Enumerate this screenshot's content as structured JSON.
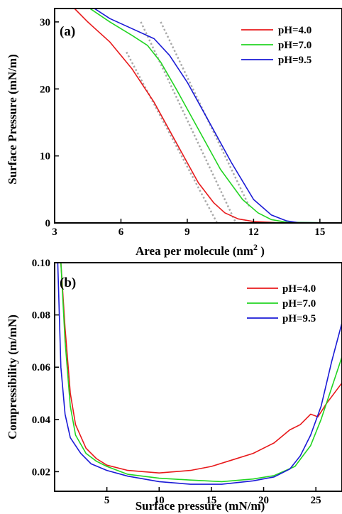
{
  "colors": {
    "pH4": "#e8191b",
    "pH7": "#22d422",
    "pH9": "#1a1ad6",
    "guide": "#a9a9a9"
  },
  "chart_data": [
    {
      "type": "line",
      "panel_label": "(a)",
      "xlabel": "Area per molecule (nm",
      "xlabel_sup": "2",
      "xlabel_close": " )",
      "ylabel": "Surface Pressure (mN/m)",
      "xlim": [
        3,
        16
      ],
      "ylim": [
        0,
        32
      ],
      "xticks": [
        3,
        6,
        9,
        12,
        15
      ],
      "yticks": [
        0,
        10,
        20,
        30
      ],
      "legend_position": "top-right",
      "series": [
        {
          "name": "pH=4.0",
          "color_key": "pH4",
          "points": [
            [
              3.9,
              32
            ],
            [
              4.5,
              30
            ],
            [
              5.5,
              27
            ],
            [
              6.5,
              23
            ],
            [
              7.5,
              18
            ],
            [
              8.5,
              12
            ],
            [
              9.5,
              6
            ],
            [
              10.2,
              3
            ],
            [
              10.7,
              1.5
            ],
            [
              11.3,
              0.6
            ],
            [
              12.0,
              0.2
            ],
            [
              13.0,
              0.05
            ],
            [
              16.0,
              0
            ]
          ]
        },
        {
          "name": "pH=7.0",
          "color_key": "pH7",
          "points": [
            [
              4.6,
              32
            ],
            [
              5.5,
              30
            ],
            [
              6.5,
              28
            ],
            [
              7.2,
              26.5
            ],
            [
              7.8,
              24
            ],
            [
              8.5,
              20
            ],
            [
              9.5,
              14
            ],
            [
              10.5,
              8
            ],
            [
              11.5,
              3.5
            ],
            [
              12.2,
              1.5
            ],
            [
              12.8,
              0.5
            ],
            [
              13.5,
              0.1
            ],
            [
              16.0,
              0
            ]
          ]
        },
        {
          "name": "pH=9.5",
          "color_key": "pH9",
          "points": [
            [
              4.8,
              32
            ],
            [
              5.5,
              30.5
            ],
            [
              6.5,
              29
            ],
            [
              7.5,
              27.5
            ],
            [
              8.2,
              25
            ],
            [
              9.0,
              21
            ],
            [
              10.0,
              15
            ],
            [
              11.0,
              9
            ],
            [
              12.0,
              3.5
            ],
            [
              12.8,
              1.2
            ],
            [
              13.5,
              0.3
            ],
            [
              14.0,
              0.05
            ],
            [
              16.0,
              0
            ]
          ]
        }
      ],
      "guide_lines": [
        [
          [
            6.25,
            25.5
          ],
          [
            10.35,
            0
          ]
        ],
        [
          [
            6.9,
            30
          ],
          [
            11.2,
            0
          ]
        ],
        [
          [
            7.8,
            30
          ],
          [
            11.8,
            2.5
          ]
        ]
      ]
    },
    {
      "type": "line",
      "panel_label": "(b)",
      "xlabel": "Surface pressure (mN/m)",
      "ylabel": "Compressibility (m/mN)",
      "xlim": [
        0,
        27.5
      ],
      "ylim": [
        0.0125,
        0.1
      ],
      "xticks": [
        5,
        10,
        15,
        20,
        25
      ],
      "yticks": [
        0.02,
        0.04,
        0.06,
        0.08,
        0.1
      ],
      "ytick_labels": [
        "0.02",
        "0.04",
        "0.06",
        "0.08",
        "0.10"
      ],
      "legend_position": "top-right",
      "series": [
        {
          "name": "pH=4.0",
          "color_key": "pH4",
          "points": [
            [
              0.6,
              0.1
            ],
            [
              1.0,
              0.075
            ],
            [
              1.5,
              0.05
            ],
            [
              2.0,
              0.038
            ],
            [
              3.0,
              0.029
            ],
            [
              4.0,
              0.025
            ],
            [
              5.0,
              0.0225
            ],
            [
              7.0,
              0.0205
            ],
            [
              10.0,
              0.0195
            ],
            [
              13.0,
              0.0205
            ],
            [
              15.0,
              0.022
            ],
            [
              17.0,
              0.0245
            ],
            [
              19.0,
              0.027
            ],
            [
              21.0,
              0.031
            ],
            [
              22.5,
              0.036
            ],
            [
              23.5,
              0.038
            ],
            [
              24.5,
              0.042
            ],
            [
              25.2,
              0.041
            ],
            [
              26.0,
              0.046
            ],
            [
              27.5,
              0.054
            ]
          ]
        },
        {
          "name": "pH=7.0",
          "color_key": "pH7",
          "points": [
            [
              0.6,
              0.1
            ],
            [
              1.0,
              0.07
            ],
            [
              1.5,
              0.045
            ],
            [
              2.0,
              0.034
            ],
            [
              3.0,
              0.027
            ],
            [
              4.0,
              0.024
            ],
            [
              5.0,
              0.022
            ],
            [
              7.0,
              0.019
            ],
            [
              10.0,
              0.0175
            ],
            [
              13.0,
              0.0168
            ],
            [
              16.0,
              0.0162
            ],
            [
              19.0,
              0.0172
            ],
            [
              21.0,
              0.0185
            ],
            [
              23.0,
              0.022
            ],
            [
              24.5,
              0.03
            ],
            [
              25.5,
              0.04
            ],
            [
              26.5,
              0.052
            ],
            [
              27.5,
              0.064
            ]
          ]
        },
        {
          "name": "pH=9.5",
          "color_key": "pH9",
          "points": [
            [
              0.3,
              0.1
            ],
            [
              0.6,
              0.06
            ],
            [
              1.0,
              0.042
            ],
            [
              1.5,
              0.033
            ],
            [
              2.5,
              0.027
            ],
            [
              3.5,
              0.023
            ],
            [
              5.0,
              0.0205
            ],
            [
              7.0,
              0.0183
            ],
            [
              10.0,
              0.0162
            ],
            [
              13.0,
              0.0152
            ],
            [
              16.0,
              0.0152
            ],
            [
              19.0,
              0.0165
            ],
            [
              21.0,
              0.018
            ],
            [
              22.5,
              0.021
            ],
            [
              23.5,
              0.026
            ],
            [
              24.5,
              0.034
            ],
            [
              25.5,
              0.045
            ],
            [
              26.5,
              0.062
            ],
            [
              27.5,
              0.077
            ]
          ]
        }
      ]
    }
  ]
}
